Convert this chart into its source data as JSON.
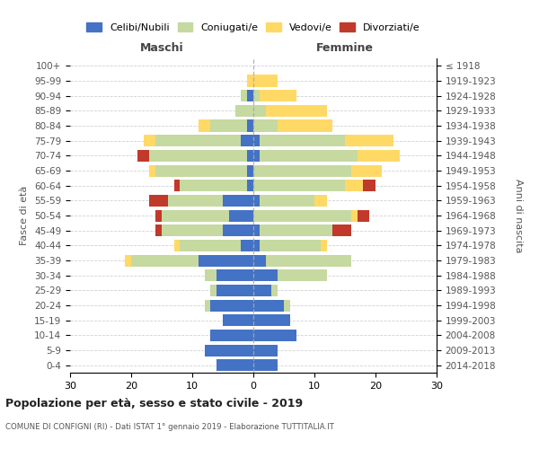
{
  "age_groups": [
    "0-4",
    "5-9",
    "10-14",
    "15-19",
    "20-24",
    "25-29",
    "30-34",
    "35-39",
    "40-44",
    "45-49",
    "50-54",
    "55-59",
    "60-64",
    "65-69",
    "70-74",
    "75-79",
    "80-84",
    "85-89",
    "90-94",
    "95-99",
    "100+"
  ],
  "birth_years": [
    "2014-2018",
    "2009-2013",
    "2004-2008",
    "1999-2003",
    "1994-1998",
    "1989-1993",
    "1984-1988",
    "1979-1983",
    "1974-1978",
    "1969-1973",
    "1964-1968",
    "1959-1963",
    "1954-1958",
    "1949-1953",
    "1944-1948",
    "1939-1943",
    "1934-1938",
    "1929-1933",
    "1924-1928",
    "1919-1923",
    "≤ 1918"
  ],
  "male": {
    "celibi": [
      6,
      8,
      7,
      5,
      7,
      6,
      6,
      9,
      2,
      5,
      4,
      5,
      1,
      1,
      1,
      2,
      1,
      0,
      1,
      0,
      0
    ],
    "coniugati": [
      0,
      0,
      0,
      0,
      1,
      1,
      2,
      11,
      10,
      10,
      11,
      9,
      11,
      15,
      16,
      14,
      6,
      3,
      1,
      0,
      0
    ],
    "vedovi": [
      0,
      0,
      0,
      0,
      0,
      0,
      0,
      1,
      1,
      0,
      0,
      0,
      0,
      1,
      0,
      2,
      2,
      0,
      0,
      1,
      0
    ],
    "divorziati": [
      0,
      0,
      0,
      0,
      0,
      0,
      0,
      0,
      0,
      1,
      1,
      3,
      1,
      0,
      2,
      0,
      0,
      0,
      0,
      0,
      0
    ]
  },
  "female": {
    "nubili": [
      4,
      4,
      7,
      6,
      5,
      3,
      4,
      2,
      1,
      1,
      0,
      1,
      0,
      0,
      1,
      1,
      0,
      0,
      0,
      0,
      0
    ],
    "coniugate": [
      0,
      0,
      0,
      0,
      1,
      1,
      8,
      14,
      10,
      12,
      16,
      9,
      15,
      16,
      16,
      14,
      4,
      2,
      1,
      0,
      0
    ],
    "vedove": [
      0,
      0,
      0,
      0,
      0,
      0,
      0,
      0,
      1,
      0,
      1,
      2,
      3,
      5,
      7,
      8,
      9,
      10,
      6,
      4,
      0
    ],
    "divorziate": [
      0,
      0,
      0,
      0,
      0,
      0,
      0,
      0,
      0,
      3,
      2,
      0,
      2,
      0,
      0,
      0,
      0,
      0,
      0,
      0,
      0
    ]
  },
  "colors": {
    "celibi": "#4472C4",
    "coniugati": "#C5D9A0",
    "vedovi": "#FFD966",
    "divorziati": "#C0392B"
  },
  "xlim": 30,
  "title": "Popolazione per età, sesso e stato civile - 2019",
  "subtitle": "COMUNE DI CONFIGNI (RI) - Dati ISTAT 1° gennaio 2019 - Elaborazione TUTTITALIA.IT",
  "xlabel_left": "Maschi",
  "xlabel_right": "Femmine",
  "ylabel_left": "Fasce di età",
  "ylabel_right": "Anni di nascita",
  "legend_labels": [
    "Celibi/Nubili",
    "Coniugati/e",
    "Vedovi/e",
    "Divorziati/e"
  ],
  "grid_color": "#cccccc"
}
